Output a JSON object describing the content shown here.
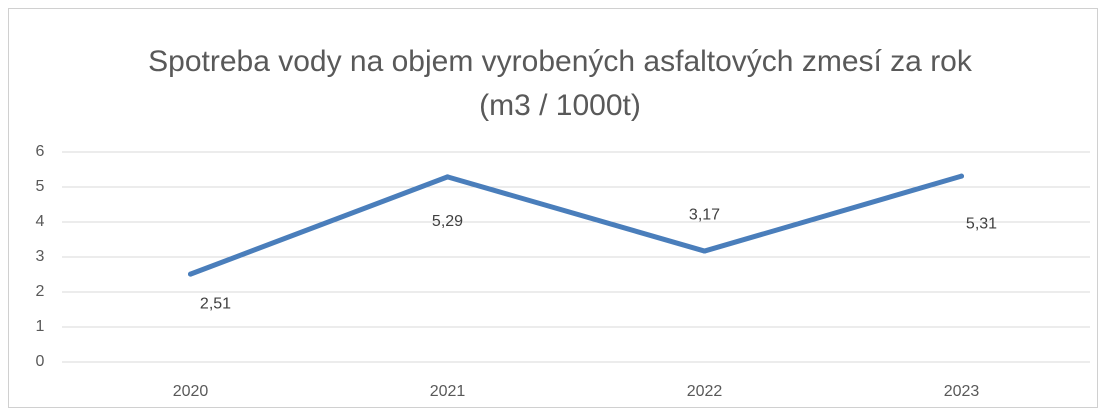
{
  "chart_data": {
    "type": "line",
    "title": "Spotreba vody na objem vyrobených asfaltových zmesí za rok (m3 / 1000t)",
    "categories": [
      "2020",
      "2021",
      "2022",
      "2023"
    ],
    "values": [
      2.51,
      5.29,
      3.17,
      5.31
    ],
    "value_labels": [
      "2,51",
      "5,29",
      "3,17",
      "5,31"
    ],
    "color": "#4a7ebb",
    "ylim": [
      0,
      6
    ],
    "yticks": [
      0,
      1,
      2,
      3,
      4,
      5,
      6
    ],
    "grid": true
  }
}
